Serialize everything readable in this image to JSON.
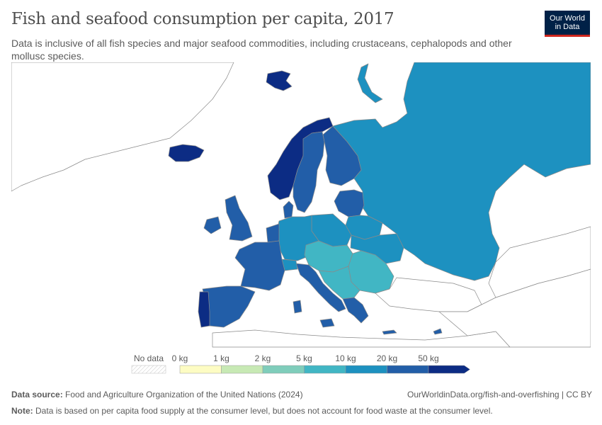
{
  "header": {
    "title": "Fish and seafood consumption per capita, 2017",
    "subtitle": "Data is inclusive of all fish species and major seafood commodities, including crustaceans, cephalopods and other mollusc species."
  },
  "logo": {
    "line1": "Our World",
    "line2": "in Data"
  },
  "legend": {
    "no_data_label": "No data",
    "ticks": [
      "0 kg",
      "1 kg",
      "2 kg",
      "5 kg",
      "10 kg",
      "20 kg",
      "50 kg"
    ],
    "bin_colors": [
      "#fdfcc3",
      "#c7e9b4",
      "#7fcdbb",
      "#41b6c4",
      "#1d91c0",
      "#225ea8",
      "#0c2c84"
    ]
  },
  "map": {
    "ocean_color": "#ffffff",
    "no_data_color": "#ffffff",
    "border_color": "#8a8a8a"
  },
  "footer": {
    "source_label": "Data source:",
    "source_text": "Food and Agriculture Organization of the United Nations (2024)",
    "url_text": "OurWorldinData.org/fish-and-overfishing | CC BY",
    "note_label": "Note:",
    "note_text": "Data is based on per capita food supply at the consumer level, but does not account for food waste at the consumer level."
  }
}
